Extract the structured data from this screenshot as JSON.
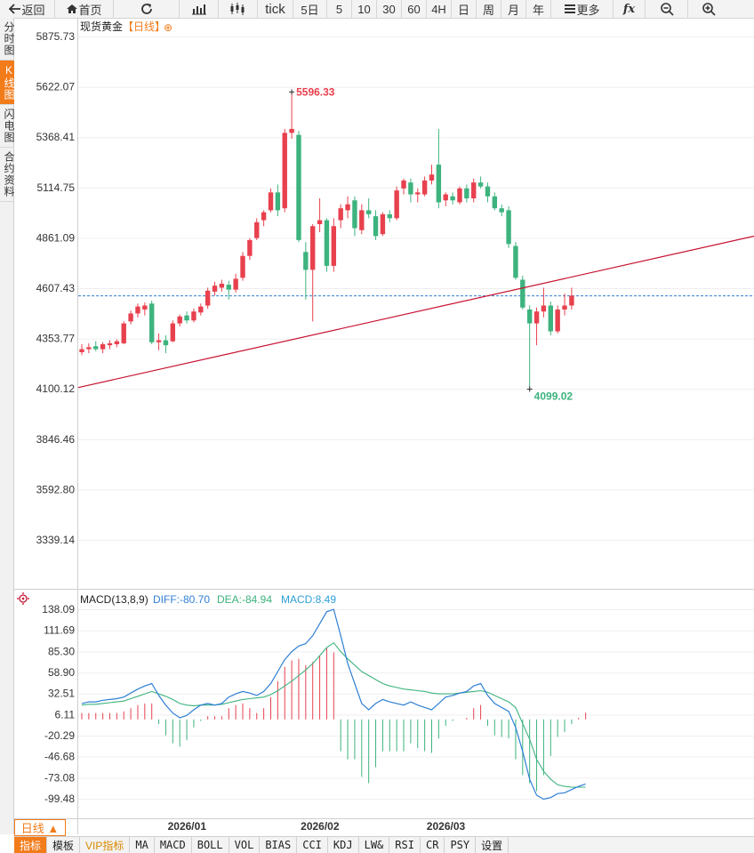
{
  "toolbar": {
    "back_label": "返回",
    "home_label": "首页",
    "tick_label": "tick",
    "periods": [
      "5日",
      "5",
      "10",
      "30",
      "60",
      "4H",
      "日",
      "周",
      "月",
      "年"
    ],
    "more_label": "更多"
  },
  "sidebar": {
    "tabs": [
      {
        "label": "分时图",
        "active": false
      },
      {
        "label": "K线图",
        "active": true
      },
      {
        "label": "闪电图",
        "active": false
      },
      {
        "label": "合约资料",
        "active": false
      }
    ]
  },
  "chart_header": {
    "instrument": "现货黄金",
    "period_tag": "【日线】",
    "add_symbol": "⊕"
  },
  "macd_header": {
    "name": "MACD(13,8,9)",
    "diff": "DIFF:-80.70",
    "dea": "DEA:-84.94",
    "macd": "MACD:8.49"
  },
  "period_button": "日线 ▲",
  "bottom_tabs": [
    "指标",
    "模板",
    "VIP指标",
    "MA",
    "MACD",
    "BOLL",
    "VOL",
    "BIAS",
    "CCI",
    "KDJ",
    "LW&",
    "RSI",
    "CR",
    "PSY",
    "设置"
  ],
  "colors": {
    "up": "#e8414e",
    "down": "#3db37e",
    "trendline": "#c8102e",
    "diff_line": "#2f7fd6",
    "dea_line": "#3db37e",
    "accent": "#f27b1a"
  },
  "chart_data": [
    {
      "type": "candlestick",
      "title": "现货黄金【日线】",
      "y_ticks": [
        "5875.73",
        "5622.07",
        "5368.41",
        "5114.75",
        "4861.09",
        "4607.43",
        "4353.77",
        "4100.12",
        "3846.46",
        "3592.80",
        "3339.14"
      ],
      "ylim": [
        3339.14,
        5875.73
      ],
      "x_labels": [
        "2026/01",
        "2026/02",
        "2026/03"
      ],
      "x_label_index": [
        13,
        32,
        50
      ],
      "max_label": "5596.33",
      "min_label": "4099.02",
      "current_price": 4571,
      "candles": [
        {
          "o": 4285,
          "h": 4325,
          "l": 4270,
          "c": 4300
        },
        {
          "o": 4300,
          "h": 4330,
          "l": 4280,
          "c": 4310
        },
        {
          "o": 4315,
          "h": 4340,
          "l": 4290,
          "c": 4300
        },
        {
          "o": 4300,
          "h": 4335,
          "l": 4280,
          "c": 4325
        },
        {
          "o": 4320,
          "h": 4345,
          "l": 4300,
          "c": 4330
        },
        {
          "o": 4325,
          "h": 4350,
          "l": 4310,
          "c": 4340
        },
        {
          "o": 4330,
          "h": 4440,
          "l": 4325,
          "c": 4430
        },
        {
          "o": 4440,
          "h": 4495,
          "l": 4425,
          "c": 4480
        },
        {
          "o": 4480,
          "h": 4530,
          "l": 4460,
          "c": 4515
        },
        {
          "o": 4500,
          "h": 4535,
          "l": 4470,
          "c": 4520
        },
        {
          "o": 4530,
          "h": 4545,
          "l": 4325,
          "c": 4335
        },
        {
          "o": 4335,
          "h": 4380,
          "l": 4295,
          "c": 4345
        },
        {
          "o": 4345,
          "h": 4370,
          "l": 4280,
          "c": 4320
        },
        {
          "o": 4340,
          "h": 4445,
          "l": 4335,
          "c": 4430
        },
        {
          "o": 4430,
          "h": 4475,
          "l": 4415,
          "c": 4465
        },
        {
          "o": 4470,
          "h": 4490,
          "l": 4430,
          "c": 4445
        },
        {
          "o": 4445,
          "h": 4505,
          "l": 4435,
          "c": 4490
        },
        {
          "o": 4485,
          "h": 4530,
          "l": 4470,
          "c": 4515
        },
        {
          "o": 4520,
          "h": 4610,
          "l": 4505,
          "c": 4595
        },
        {
          "o": 4590,
          "h": 4640,
          "l": 4570,
          "c": 4620
        },
        {
          "o": 4610,
          "h": 4650,
          "l": 4590,
          "c": 4630
        },
        {
          "o": 4625,
          "h": 4645,
          "l": 4550,
          "c": 4600
        },
        {
          "o": 4600,
          "h": 4680,
          "l": 4585,
          "c": 4655
        },
        {
          "o": 4660,
          "h": 4790,
          "l": 4645,
          "c": 4770
        },
        {
          "o": 4770,
          "h": 4860,
          "l": 4750,
          "c": 4850
        },
        {
          "o": 4860,
          "h": 4960,
          "l": 4850,
          "c": 4940
        },
        {
          "o": 4950,
          "h": 5000,
          "l": 4920,
          "c": 4990
        },
        {
          "o": 5000,
          "h": 5110,
          "l": 4990,
          "c": 5090
        },
        {
          "o": 5090,
          "h": 5130,
          "l": 4970,
          "c": 5000
        },
        {
          "o": 5010,
          "h": 5410,
          "l": 4990,
          "c": 5390
        },
        {
          "o": 5390,
          "h": 5596,
          "l": 5360,
          "c": 5410
        },
        {
          "o": 5380,
          "h": 5400,
          "l": 4840,
          "c": 4850
        },
        {
          "o": 4790,
          "h": 4840,
          "l": 4550,
          "c": 4700
        },
        {
          "o": 4700,
          "h": 4930,
          "l": 4440,
          "c": 4920
        },
        {
          "o": 4930,
          "h": 5060,
          "l": 4890,
          "c": 4950
        },
        {
          "o": 4950,
          "h": 4960,
          "l": 4690,
          "c": 4720
        },
        {
          "o": 4720,
          "h": 4960,
          "l": 4690,
          "c": 4920
        },
        {
          "o": 4950,
          "h": 5030,
          "l": 4910,
          "c": 5010
        },
        {
          "o": 5000,
          "h": 5070,
          "l": 4960,
          "c": 5030
        },
        {
          "o": 5050,
          "h": 5070,
          "l": 4870,
          "c": 4910
        },
        {
          "o": 4900,
          "h": 5030,
          "l": 4880,
          "c": 5000
        },
        {
          "o": 5000,
          "h": 5060,
          "l": 4960,
          "c": 4980
        },
        {
          "o": 4970,
          "h": 5000,
          "l": 4850,
          "c": 4870
        },
        {
          "o": 4880,
          "h": 4990,
          "l": 4870,
          "c": 4980
        },
        {
          "o": 4980,
          "h": 5000,
          "l": 4940,
          "c": 4960
        },
        {
          "o": 4960,
          "h": 5120,
          "l": 4950,
          "c": 5100
        },
        {
          "o": 5110,
          "h": 5160,
          "l": 5080,
          "c": 5150
        },
        {
          "o": 5140,
          "h": 5160,
          "l": 5040,
          "c": 5080
        },
        {
          "o": 5080,
          "h": 5110,
          "l": 5040,
          "c": 5090
        },
        {
          "o": 5080,
          "h": 5170,
          "l": 5070,
          "c": 5150
        },
        {
          "o": 5150,
          "h": 5230,
          "l": 5130,
          "c": 5180
        },
        {
          "o": 5230,
          "h": 5410,
          "l": 5010,
          "c": 5040
        },
        {
          "o": 5050,
          "h": 5090,
          "l": 5020,
          "c": 5080
        },
        {
          "o": 5070,
          "h": 5090,
          "l": 5030,
          "c": 5050
        },
        {
          "o": 5040,
          "h": 5120,
          "l": 5030,
          "c": 5110
        },
        {
          "o": 5110,
          "h": 5130,
          "l": 5040,
          "c": 5060
        },
        {
          "o": 5060,
          "h": 5160,
          "l": 5040,
          "c": 5140
        },
        {
          "o": 5140,
          "h": 5170,
          "l": 5110,
          "c": 5120
        },
        {
          "o": 5120,
          "h": 5140,
          "l": 5040,
          "c": 5070
        },
        {
          "o": 5070,
          "h": 5090,
          "l": 5000,
          "c": 5010
        },
        {
          "o": 5010,
          "h": 5030,
          "l": 4970,
          "c": 4990
        },
        {
          "o": 5000,
          "h": 5020,
          "l": 4810,
          "c": 4830
        },
        {
          "o": 4820,
          "h": 4840,
          "l": 4650,
          "c": 4660
        },
        {
          "o": 4650,
          "h": 4670,
          "l": 4500,
          "c": 4510
        },
        {
          "o": 4500,
          "h": 4520,
          "l": 4099,
          "c": 4430
        },
        {
          "o": 4430,
          "h": 4510,
          "l": 4320,
          "c": 4490
        },
        {
          "o": 4490,
          "h": 4610,
          "l": 4460,
          "c": 4520
        },
        {
          "o": 4520,
          "h": 4540,
          "l": 4370,
          "c": 4390
        },
        {
          "o": 4390,
          "h": 4520,
          "l": 4380,
          "c": 4500
        },
        {
          "o": 4500,
          "h": 4580,
          "l": 4470,
          "c": 4520
        },
        {
          "o": 4520,
          "h": 4610,
          "l": 4500,
          "c": 4570
        }
      ],
      "trendline": {
        "x0_index": 0,
        "y0": 4111,
        "x1_index": 98,
        "y1": 4885
      }
    },
    {
      "type": "macd",
      "title": "MACD(13,8,9)",
      "y_ticks": [
        "138.09",
        "111.69",
        "85.30",
        "58.90",
        "32.51",
        "6.11",
        "-20.29",
        "-46.68",
        "-73.08",
        "-99.48"
      ],
      "ylim": [
        -99.48,
        138.09
      ],
      "diff": [
        20,
        22,
        22,
        24,
        25,
        26,
        28,
        33,
        38,
        42,
        45,
        30,
        18,
        8,
        2,
        5,
        12,
        18,
        20,
        18,
        20,
        28,
        32,
        35,
        33,
        30,
        35,
        45,
        60,
        75,
        85,
        92,
        95,
        105,
        120,
        135,
        138,
        105,
        70,
        45,
        20,
        12,
        20,
        25,
        22,
        20,
        18,
        22,
        18,
        15,
        12,
        20,
        28,
        30,
        33,
        35,
        42,
        45,
        30,
        20,
        15,
        10,
        -10,
        -40,
        -75,
        -95,
        -100,
        -98,
        -93,
        -92,
        -88,
        -84,
        -81
      ],
      "dea": [
        18,
        19,
        19,
        20,
        21,
        22,
        23,
        26,
        29,
        32,
        35,
        32,
        29,
        25,
        20,
        18,
        17,
        18,
        18,
        18,
        19,
        21,
        23,
        25,
        26,
        27,
        28,
        31,
        36,
        42,
        48,
        55,
        62,
        70,
        80,
        90,
        96,
        85,
        76,
        68,
        60,
        55,
        50,
        45,
        42,
        40,
        38,
        37,
        36,
        35,
        33,
        32,
        32,
        32,
        33,
        34,
        35,
        36,
        34,
        30,
        26,
        22,
        15,
        -5,
        -25,
        -50,
        -65,
        -75,
        -82,
        -84,
        -85,
        -85,
        -85
      ],
      "hist": [
        8,
        8,
        8,
        8,
        8,
        8,
        10,
        14,
        18,
        20,
        20,
        -6,
        -20,
        -30,
        -34,
        -26,
        -10,
        -2,
        4,
        4,
        4,
        14,
        18,
        20,
        14,
        8,
        14,
        28,
        48,
        66,
        74,
        76,
        68,
        72,
        80,
        90,
        84,
        -40,
        -50,
        -50,
        -72,
        -80,
        -60,
        -40,
        -40,
        -40,
        -40,
        -30,
        -36,
        -40,
        -42,
        -24,
        -8,
        -2,
        0,
        2,
        14,
        18,
        -8,
        -20,
        -22,
        -24,
        -50,
        -70,
        -80,
        -90,
        -70,
        -46,
        -22,
        -16,
        -6,
        2,
        8.49
      ]
    }
  ]
}
